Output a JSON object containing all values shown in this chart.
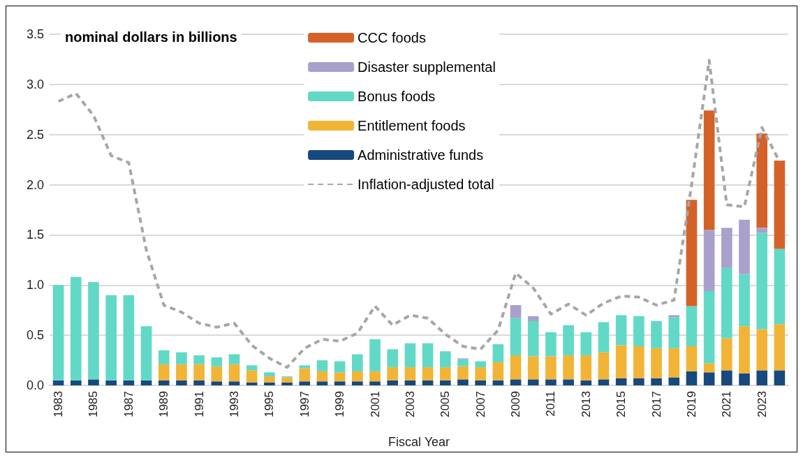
{
  "chart_data": {
    "type": "bar",
    "stacked": true,
    "xlabel": "Fiscal Year",
    "annotations": [
      "nominal dollars in billions"
    ],
    "categories": [
      "1983",
      null,
      "1985",
      null,
      "1987",
      null,
      "1989",
      null,
      "1991",
      null,
      "1993",
      null,
      "1995",
      null,
      "1997",
      null,
      "1999",
      null,
      "2001",
      null,
      "2003",
      null,
      "2005",
      null,
      "2007",
      null,
      "2009",
      null,
      "2011",
      null,
      "2013",
      null,
      "2015",
      null,
      "2017",
      null,
      "2019",
      null,
      "2021",
      null,
      "2023",
      null
    ],
    "ylim": [
      0,
      3.5
    ],
    "yticks": [
      {
        "value": 0,
        "label": "0.0"
      },
      {
        "value": 0.5,
        "label": "0.5"
      },
      {
        "value": 1,
        "label": "1.0"
      },
      {
        "value": 1.5,
        "label": "1.5"
      },
      {
        "value": 2,
        "label": "2.0"
      },
      {
        "value": 2.5,
        "label": "2.5"
      },
      {
        "value": 3,
        "label": "3.0"
      },
      {
        "value": 3.5,
        "label": "3.5"
      }
    ],
    "grid": "y",
    "legend": "top",
    "series": [
      {
        "name": "Administrative funds",
        "color": "#17497e",
        "values": [
          0.05,
          0.05,
          0.06,
          0.05,
          0.05,
          0.05,
          0.05,
          0.05,
          0.05,
          0.04,
          0.04,
          0.03,
          0.03,
          0.03,
          0.04,
          0.04,
          0.04,
          0.04,
          0.04,
          0.05,
          0.05,
          0.05,
          0.05,
          0.06,
          0.05,
          0.05,
          0.06,
          0.06,
          0.06,
          0.06,
          0.05,
          0.06,
          0.07,
          0.07,
          0.07,
          0.08,
          0.14,
          0.13,
          0.15,
          0.12,
          0.15,
          0.15
        ]
      },
      {
        "name": "Entitlement foods",
        "color": "#f1b436",
        "values": [
          null,
          null,
          null,
          null,
          null,
          null,
          0.16,
          0.16,
          0.16,
          0.15,
          0.17,
          0.12,
          0.06,
          0.05,
          0.13,
          0.1,
          0.09,
          0.1,
          0.1,
          0.13,
          0.13,
          0.13,
          0.13,
          0.13,
          0.13,
          0.18,
          0.24,
          0.23,
          0.23,
          0.24,
          0.25,
          0.27,
          0.33,
          0.32,
          0.3,
          0.29,
          0.25,
          0.09,
          0.32,
          0.47,
          0.41,
          0.46
        ]
      },
      {
        "name": "Bonus foods",
        "color": "#61d9c6",
        "values": [
          0.95,
          1.03,
          0.97,
          0.85,
          0.85,
          0.54,
          0.14,
          0.12,
          0.09,
          0.09,
          0.1,
          0.05,
          0.04,
          0.01,
          0.03,
          0.11,
          0.11,
          0.17,
          0.32,
          0.18,
          0.24,
          0.24,
          0.16,
          0.07,
          0.06,
          0.18,
          0.37,
          0.35,
          0.24,
          0.3,
          0.23,
          0.3,
          0.3,
          0.3,
          0.27,
          0.31,
          0.4,
          0.72,
          0.7,
          0.52,
          0.96,
          0.75
        ]
      },
      {
        "name": "Disaster supplemental",
        "color": "#a9a0cc",
        "values": [
          null,
          null,
          null,
          null,
          null,
          null,
          null,
          null,
          null,
          null,
          null,
          null,
          null,
          null,
          null,
          null,
          null,
          null,
          null,
          null,
          null,
          null,
          null,
          0.01,
          null,
          null,
          0.13,
          0.05,
          null,
          null,
          null,
          null,
          null,
          null,
          null,
          0.02,
          null,
          0.61,
          0.4,
          0.54,
          0.05,
          null
        ]
      },
      {
        "name": "CCC foods",
        "color": "#d46228",
        "values": [
          null,
          null,
          null,
          null,
          null,
          null,
          null,
          null,
          null,
          null,
          null,
          null,
          null,
          null,
          null,
          null,
          null,
          null,
          null,
          null,
          null,
          null,
          null,
          null,
          null,
          null,
          null,
          null,
          null,
          null,
          null,
          null,
          null,
          null,
          null,
          null,
          1.06,
          1.19,
          null,
          null,
          0.94,
          0.88
        ]
      },
      {
        "name": "Inflation-adjusted total",
        "type": "line",
        "line_style": "dashed",
        "color": "#a6a6a6",
        "values": [
          2.83,
          2.91,
          2.69,
          2.29,
          2.22,
          1.35,
          0.8,
          0.73,
          0.62,
          0.58,
          0.62,
          0.4,
          0.27,
          0.18,
          0.37,
          0.46,
          0.44,
          0.52,
          0.79,
          0.6,
          0.7,
          0.67,
          0.51,
          0.39,
          0.36,
          0.55,
          1.12,
          0.97,
          0.71,
          0.81,
          0.7,
          0.82,
          0.89,
          0.88,
          0.8,
          0.85,
          2.0,
          3.24,
          1.8,
          1.78,
          2.57,
          2.23
        ]
      }
    ]
  }
}
